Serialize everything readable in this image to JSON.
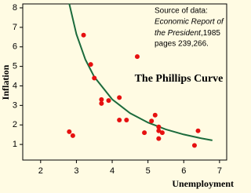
{
  "chart_data": {
    "type": "scatter",
    "title": "The Phillips Curve",
    "x_label": "Unemployment",
    "y_label": "Inflation",
    "source": [
      "Source of data:",
      "Economic Report of",
      "the President",
      ",1985",
      "pages 239,266."
    ],
    "x": [
      3.2,
      3.4,
      3.5,
      3.7,
      3.7,
      3.9,
      4.2,
      4.2,
      4.4,
      4.7,
      2.8,
      2.9,
      4.9,
      5.1,
      5.2,
      5.3,
      5.3,
      5.3,
      5.4,
      6.3,
      6.4
    ],
    "values": [
      6.6,
      5.1,
      4.4,
      3.3,
      3.1,
      3.25,
      3.4,
      2.25,
      2.25,
      5.5,
      1.65,
      1.45,
      1.6,
      2.2,
      2.5,
      1.9,
      1.7,
      1.3,
      1.6,
      0.95,
      1.7
    ],
    "color": "#e61010",
    "curve": {
      "x": [
        2.8,
        3.0,
        3.25,
        3.5,
        4.0,
        4.5,
        5.0,
        5.5,
        6.0,
        6.5,
        6.8
      ],
      "values": [
        8.21,
        6.65,
        5.35,
        4.46,
        3.31,
        2.6,
        2.12,
        1.77,
        1.51,
        1.31,
        1.21
      ],
      "color": "#1c6b3c"
    },
    "xlim": [
      1.5,
      7.2
    ],
    "ylim": [
      0.2,
      8.2
    ],
    "xticks": [
      2,
      3,
      4,
      5,
      6,
      7
    ],
    "yticks": [
      1,
      2,
      3,
      4,
      5,
      6,
      7,
      8
    ],
    "grid": false
  }
}
